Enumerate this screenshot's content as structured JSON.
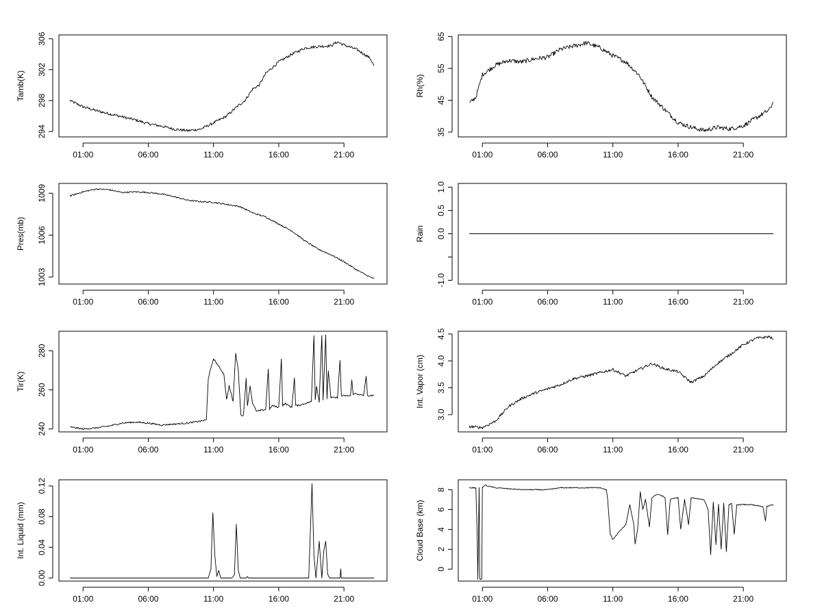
{
  "chart_data": [
    {
      "id": "tamb",
      "type": "line",
      "ylabel": "Tamb(K)",
      "ylim": [
        293.3,
        306.5
      ],
      "yticks": [
        294,
        298,
        302,
        306
      ],
      "xlim": [
        -0.85,
        24.3
      ],
      "xticks": [
        1,
        6,
        11,
        16,
        21
      ],
      "xtick_labels": [
        "01:00",
        "06:00",
        "11:00",
        "16:00",
        "21:00"
      ],
      "series": [
        {
          "name": "Tamb",
          "noise": 0.18,
          "x": [
            0,
            1,
            2,
            3,
            4,
            5,
            6,
            7,
            8,
            9,
            10,
            11,
            12,
            12.8,
            13.4,
            14,
            14.5,
            15,
            16,
            17,
            18,
            19,
            20,
            20.5,
            21,
            22,
            23,
            23.3
          ],
          "y": [
            298.0,
            297.2,
            296.7,
            296.3,
            295.9,
            295.5,
            295.0,
            294.7,
            294.3,
            294.1,
            294.3,
            295.1,
            296.0,
            297.2,
            298.0,
            299.5,
            300.0,
            301.5,
            303.0,
            304.0,
            304.8,
            305.0,
            305.1,
            305.6,
            305.2,
            304.6,
            303.5,
            302.5
          ]
        }
      ]
    },
    {
      "id": "rh",
      "type": "line",
      "ylabel": "Rh(%)",
      "ylim": [
        33.5,
        65.5
      ],
      "yticks": [
        35,
        45,
        55,
        65
      ],
      "xlim": [
        -0.85,
        24.3
      ],
      "xticks": [
        1,
        6,
        11,
        16,
        21
      ],
      "xtick_labels": [
        "01:00",
        "06:00",
        "11:00",
        "16:00",
        "21:00"
      ],
      "series": [
        {
          "name": "Rh",
          "noise": 0.7,
          "x": [
            0,
            0.5,
            1,
            2,
            3,
            4,
            5,
            6,
            7,
            8,
            9,
            10,
            11,
            12,
            13,
            14,
            15,
            16,
            17,
            18,
            19,
            20,
            21,
            22,
            23,
            23.3
          ],
          "y": [
            44,
            46,
            53,
            56,
            57.5,
            57,
            58,
            58.5,
            61,
            62,
            63,
            61.5,
            59,
            57,
            53,
            46,
            42,
            38,
            36.5,
            35.5,
            36.5,
            36,
            37,
            39.5,
            42,
            44.5
          ]
        }
      ]
    },
    {
      "id": "pres",
      "type": "line",
      "ylabel": "Pres(mb)",
      "ylim": [
        1002.5,
        1009.7
      ],
      "yticks": [
        1003,
        1006,
        1009
      ],
      "xlim": [
        -0.85,
        24.3
      ],
      "xticks": [
        1,
        6,
        11,
        16,
        21
      ],
      "xtick_labels": [
        "01:00",
        "06:00",
        "11:00",
        "16:00",
        "21:00"
      ],
      "series": [
        {
          "name": "Pres",
          "noise": 0.05,
          "x": [
            0,
            1,
            2,
            3,
            4,
            5,
            6,
            7,
            8,
            9,
            10,
            11,
            12,
            13,
            14,
            15,
            16,
            17,
            18,
            19,
            20,
            21,
            22,
            23,
            23.3
          ],
          "y": [
            1008.8,
            1009.1,
            1009.3,
            1009.25,
            1009.05,
            1009.1,
            1009.05,
            1008.95,
            1008.75,
            1008.5,
            1008.4,
            1008.35,
            1008.2,
            1008.05,
            1007.6,
            1007.3,
            1006.8,
            1006.3,
            1005.6,
            1005.0,
            1004.6,
            1004.1,
            1003.5,
            1003.0,
            1002.9
          ]
        }
      ]
    },
    {
      "id": "rain",
      "type": "line",
      "ylabel": "Rain",
      "ylim": [
        -1.08,
        1.08
      ],
      "yticks": [
        -1.0,
        -0.5,
        0.0,
        0.5,
        1.0
      ],
      "ytick_labels": [
        "-1.0",
        "",
        "0.0",
        "0.5",
        "1.0"
      ],
      "xlim": [
        -0.85,
        24.3
      ],
      "xticks": [
        1,
        6,
        11,
        16,
        21
      ],
      "xtick_labels": [
        "01:00",
        "06:00",
        "11:00",
        "16:00",
        "21:00"
      ],
      "series": [
        {
          "name": "Rain",
          "noise": 0,
          "x": [
            0,
            23.3
          ],
          "y": [
            0,
            0
          ]
        }
      ]
    },
    {
      "id": "tir",
      "type": "line",
      "ylabel": "Tir(K)",
      "ylim": [
        238.5,
        290
      ],
      "yticks": [
        240,
        260,
        280
      ],
      "xlim": [
        -0.85,
        24.3
      ],
      "xticks": [
        1,
        6,
        11,
        16,
        21
      ],
      "xtick_labels": [
        "01:00",
        "06:00",
        "11:00",
        "16:00",
        "21:00"
      ],
      "series": [
        {
          "name": "Tir",
          "noise": 0.4,
          "x": [
            0,
            1,
            2,
            3,
            4,
            5,
            6,
            7,
            8,
            9,
            10,
            10.45,
            10.6,
            11,
            11.4,
            11.8,
            12.0,
            12.2,
            12.5,
            12.7,
            12.9,
            13.1,
            13.3,
            13.5,
            13.6,
            13.8,
            14.0,
            14.3,
            15,
            15.2,
            15.3,
            15.5,
            16,
            16.2,
            16.3,
            16.5,
            17,
            17.2,
            17.3,
            17.5,
            18,
            18.5,
            18.7,
            18.8,
            18.9,
            19.1,
            19.3,
            19.4,
            19.6,
            19.7,
            19.8,
            20.0,
            20.5,
            20.7,
            20.8,
            21,
            21.5,
            21.6,
            21.7,
            22,
            22.5,
            22.7,
            22.8,
            23,
            23.3
          ],
          "y": [
            241,
            240,
            240.5,
            241.5,
            243,
            243.5,
            243,
            242,
            242.5,
            243,
            244,
            244.5,
            266,
            276,
            272,
            268,
            255,
            262,
            254,
            279,
            270,
            247,
            247,
            266,
            252,
            262,
            253,
            249,
            250,
            271,
            250,
            252,
            251,
            276,
            252,
            253,
            251,
            266,
            252,
            252,
            253,
            254,
            288,
            255,
            262,
            254,
            288,
            255,
            288,
            255,
            270,
            256,
            256,
            275,
            257,
            257,
            257,
            265,
            258,
            258,
            257,
            267,
            257,
            257,
            257
          ]
        }
      ]
    },
    {
      "id": "vapor",
      "type": "line",
      "ylabel": "Int. Vapor (cm)",
      "ylim": [
        2.68,
        4.55
      ],
      "yticks": [
        3.0,
        3.5,
        4.0,
        4.5
      ],
      "ytick_labels": [
        "3.0",
        "3.5",
        "4.0",
        "4.5"
      ],
      "xlim": [
        -0.85,
        24.3
      ],
      "xticks": [
        1,
        6,
        11,
        16,
        21
      ],
      "xtick_labels": [
        "01:00",
        "06:00",
        "11:00",
        "16:00",
        "21:00"
      ],
      "series": [
        {
          "name": "Int. Vapor",
          "noise": 0.025,
          "x": [
            0,
            1,
            2,
            3,
            4,
            5,
            6,
            7,
            8,
            9,
            10,
            11,
            12,
            13,
            14,
            15,
            16,
            17,
            18,
            19,
            20,
            21,
            22,
            23,
            23.3
          ],
          "y": [
            2.78,
            2.76,
            2.88,
            3.15,
            3.3,
            3.4,
            3.48,
            3.56,
            3.67,
            3.72,
            3.78,
            3.84,
            3.72,
            3.84,
            3.95,
            3.85,
            3.8,
            3.6,
            3.72,
            3.95,
            4.12,
            4.3,
            4.42,
            4.45,
            4.4
          ]
        }
      ]
    },
    {
      "id": "liquid",
      "type": "line",
      "ylabel": "Int. Liquid (mm)",
      "ylim": [
        -0.004,
        0.128
      ],
      "yticks": [
        0.0,
        0.04,
        0.08,
        0.12
      ],
      "ytick_labels": [
        "0.00",
        "0.04",
        "0.08",
        "0.12"
      ],
      "xlim": [
        -0.85,
        24.3
      ],
      "xticks": [
        1,
        6,
        11,
        16,
        21
      ],
      "xtick_labels": [
        "01:00",
        "06:00",
        "11:00",
        "16:00",
        "21:00"
      ],
      "series": [
        {
          "name": "Int. Liquid",
          "noise": 0,
          "x": [
            0,
            10.6,
            10.8,
            10.95,
            11.1,
            11.25,
            11.4,
            11.55,
            11.8,
            12.4,
            12.6,
            12.75,
            12.9,
            13.05,
            13.5,
            13.6,
            13.7,
            18.3,
            18.55,
            18.7,
            18.85,
            19.1,
            19.3,
            19.45,
            19.6,
            19.75,
            19.9,
            20.0,
            20.7,
            20.75,
            20.8,
            20.85,
            23.3
          ],
          "y": [
            0,
            0,
            0.012,
            0.085,
            0.03,
            0.002,
            0.01,
            0.0,
            0,
            0,
            0.004,
            0.07,
            0.01,
            0,
            0,
            0.002,
            0,
            0,
            0.123,
            0.03,
            0,
            0.048,
            0,
            0.035,
            0.048,
            0.005,
            0,
            0,
            0,
            0.012,
            0,
            0,
            0
          ]
        }
      ]
    },
    {
      "id": "cloudbase",
      "type": "line",
      "ylabel": "Cloud Base (km)",
      "ylim": [
        -1.2,
        9.0
      ],
      "yticks": [
        0,
        2,
        4,
        6,
        8
      ],
      "xlim": [
        -0.85,
        24.3
      ],
      "xticks": [
        1,
        6,
        11,
        16,
        21
      ],
      "xtick_labels": [
        "01:00",
        "06:00",
        "11:00",
        "16:00",
        "21:00"
      ],
      "series": [
        {
          "name": "Cloud Base",
          "noise": 0.05,
          "x": [
            0,
            0.5,
            0.6,
            0.65,
            0.75,
            0.8,
            0.95,
            1.0,
            1.1,
            1.2,
            1.3,
            2,
            3,
            4,
            5,
            6,
            7,
            8,
            9,
            10,
            10.5,
            10.6,
            10.8,
            11.0,
            11.5,
            12.0,
            12.3,
            12.6,
            12.7,
            12.9,
            13.1,
            13.3,
            13.5,
            13.8,
            14.0,
            14.3,
            14.6,
            15.0,
            15.2,
            15.4,
            15.6,
            16,
            16.2,
            16.5,
            16.8,
            17,
            17.5,
            18,
            18.3,
            18.5,
            18.7,
            18.9,
            19.1,
            19.3,
            19.5,
            19.7,
            19.9,
            20.1,
            20.3,
            20.5,
            21,
            21.5,
            22,
            22.5,
            22.7,
            22.8,
            23,
            23.3
          ],
          "y": [
            8.2,
            8.2,
            3.5,
            -1.0,
            8.2,
            -1.0,
            -1.0,
            8.3,
            8.3,
            8.5,
            8.4,
            8.2,
            8.1,
            8.0,
            8.0,
            8.0,
            8.2,
            8.2,
            8.2,
            8.2,
            8.0,
            7.0,
            3.5,
            3.0,
            3.8,
            4.5,
            6.5,
            4.5,
            2.5,
            4.0,
            7.8,
            6.0,
            7.0,
            4.3,
            7.2,
            7.5,
            7.5,
            7.2,
            3.5,
            7.0,
            7.1,
            7.2,
            4.0,
            7.0,
            4.5,
            7.2,
            7.1,
            7.0,
            6.0,
            1.5,
            6.8,
            2.5,
            6.5,
            2.0,
            6.6,
            1.8,
            6.5,
            6.6,
            3.5,
            6.5,
            6.5,
            6.5,
            6.4,
            6.3,
            4.8,
            6.3,
            6.4,
            6.5
          ]
        }
      ]
    }
  ]
}
